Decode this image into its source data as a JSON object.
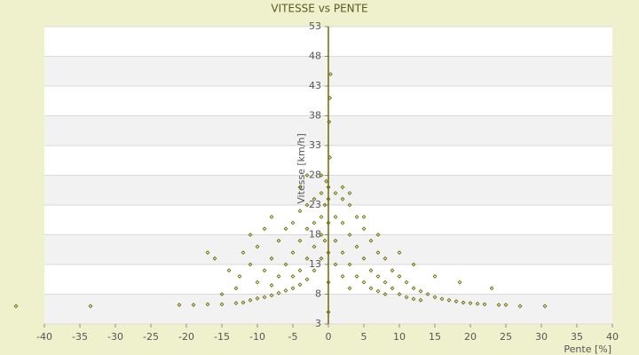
{
  "chart_data": {
    "type": "scatter",
    "title": "VITESSE vs PENTE",
    "x_label": "Pente [%]",
    "y_label": "Vitesse [km/h]",
    "color": "#6b6b00",
    "xlim": [
      -40,
      40
    ],
    "xticks": [
      -40,
      -35,
      -30,
      -25,
      -20,
      -15,
      -10,
      -5,
      0,
      5,
      10,
      15,
      20,
      25,
      30,
      35,
      40
    ],
    "ylim": [
      3,
      53
    ],
    "yticks": [
      3,
      8,
      13,
      18,
      23,
      28,
      33,
      38,
      43,
      48,
      53
    ],
    "grid": true,
    "x": [
      -44,
      -33.5,
      -21,
      -19,
      -17,
      -15,
      -13,
      -12,
      -11,
      -10,
      -9,
      -8,
      -7,
      -6,
      -5,
      -4,
      -3,
      -2,
      -1,
      -0.5,
      -17,
      -16,
      -12,
      -12.5,
      -13,
      -11,
      -10,
      -10,
      -9,
      -8,
      -8,
      -7,
      -7,
      -6,
      -6,
      -5,
      -5,
      -5,
      -4,
      -4,
      -4,
      -3,
      -3,
      -3,
      -2,
      -2,
      -2,
      -1,
      -1,
      -1,
      -0.5,
      -0.3,
      -1,
      -3,
      -4,
      -8,
      -9,
      -11,
      -14,
      -15,
      0,
      0,
      0,
      0,
      0,
      0,
      0.3,
      0.2,
      0.1,
      0.2,
      1,
      1,
      1,
      1,
      2,
      2,
      2,
      2,
      3,
      3,
      3,
      3,
      4,
      4,
      4,
      5,
      5,
      5,
      6,
      6,
      6,
      7,
      7,
      7,
      8,
      8,
      8,
      9,
      9,
      10,
      10,
      11,
      11,
      12,
      12,
      13,
      13,
      14,
      15,
      16,
      17,
      18,
      19,
      20,
      21,
      22,
      23,
      24,
      25,
      27,
      30.5,
      18.5,
      15,
      12,
      10,
      7,
      5,
      3,
      2
    ],
    "values": [
      6,
      6,
      6.2,
      6.2,
      6.3,
      6.3,
      6.5,
      6.6,
      7,
      7.3,
      7.5,
      7.8,
      8.2,
      8.6,
      9,
      9.6,
      10.5,
      12,
      14,
      17,
      15,
      14,
      15,
      11,
      9,
      13,
      16,
      10,
      12,
      14,
      9.5,
      17,
      11,
      19,
      13,
      20,
      15,
      11,
      22,
      17,
      12,
      23,
      19,
      14,
      24,
      20,
      16,
      25,
      21,
      18,
      23,
      27,
      28,
      28,
      26,
      21,
      19,
      18,
      12,
      8,
      5,
      10,
      15,
      20,
      24,
      26,
      45,
      41,
      37,
      31,
      25,
      21,
      17,
      13,
      24,
      20,
      15,
      11,
      23,
      18,
      13,
      9,
      21,
      16,
      11,
      19,
      14,
      10,
      17,
      12,
      9,
      15,
      11,
      8.5,
      14,
      10,
      8,
      12,
      9,
      11,
      8,
      10,
      7.5,
      9,
      7.2,
      8.5,
      7,
      8,
      7.5,
      7.2,
      7,
      6.8,
      6.6,
      6.5,
      6.4,
      6.3,
      9,
      6.2,
      6.2,
      6,
      6,
      10,
      11,
      13,
      15,
      18,
      21,
      25,
      26
    ]
  }
}
